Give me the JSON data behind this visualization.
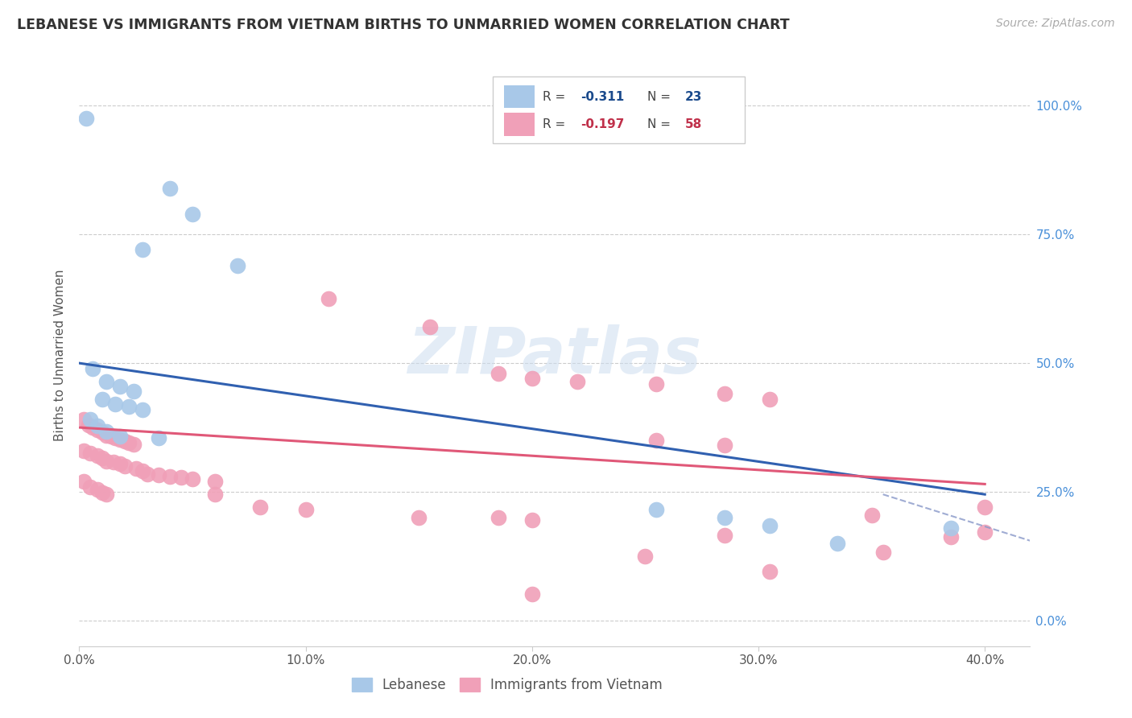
{
  "title": "LEBANESE VS IMMIGRANTS FROM VIETNAM BIRTHS TO UNMARRIED WOMEN CORRELATION CHART",
  "source": "Source: ZipAtlas.com",
  "ylabel": "Births to Unmarried Women",
  "yticks_labels": [
    "100.0%",
    "75.0%",
    "50.0%",
    "25.0%",
    "0.0%"
  ],
  "ytick_vals": [
    1.0,
    0.75,
    0.5,
    0.25,
    0.0
  ],
  "xticks_labels": [
    "0.0%",
    "10.0%",
    "20.0%",
    "30.0%",
    "40.0%"
  ],
  "xtick_vals": [
    0.0,
    0.1,
    0.2,
    0.3,
    0.4
  ],
  "xrange": [
    0.0,
    0.42
  ],
  "yrange": [
    -0.05,
    1.08
  ],
  "blue_color": "#a8c8e8",
  "pink_color": "#f0a0b8",
  "line_blue": "#3060b0",
  "line_pink": "#e05878",
  "line_dash": "#8898c8",
  "blue_line_x": [
    0.0,
    0.4
  ],
  "blue_line_y": [
    0.5,
    0.245
  ],
  "pink_line_x": [
    0.0,
    0.4
  ],
  "pink_line_y": [
    0.375,
    0.265
  ],
  "dash_line_x": [
    0.355,
    0.42
  ],
  "dash_line_y": [
    0.245,
    0.155
  ],
  "blue_dots": [
    [
      0.003,
      0.975
    ],
    [
      0.04,
      0.84
    ],
    [
      0.05,
      0.79
    ],
    [
      0.028,
      0.72
    ],
    [
      0.07,
      0.69
    ],
    [
      0.006,
      0.49
    ],
    [
      0.012,
      0.465
    ],
    [
      0.018,
      0.455
    ],
    [
      0.024,
      0.445
    ],
    [
      0.01,
      0.43
    ],
    [
      0.016,
      0.42
    ],
    [
      0.022,
      0.415
    ],
    [
      0.028,
      0.41
    ],
    [
      0.005,
      0.39
    ],
    [
      0.008,
      0.378
    ],
    [
      0.012,
      0.368
    ],
    [
      0.018,
      0.358
    ],
    [
      0.035,
      0.355
    ],
    [
      0.255,
      0.215
    ],
    [
      0.285,
      0.2
    ],
    [
      0.305,
      0.185
    ],
    [
      0.335,
      0.15
    ],
    [
      0.385,
      0.18
    ]
  ],
  "pink_dots": [
    [
      0.002,
      0.39
    ],
    [
      0.004,
      0.38
    ],
    [
      0.006,
      0.375
    ],
    [
      0.008,
      0.37
    ],
    [
      0.01,
      0.365
    ],
    [
      0.012,
      0.36
    ],
    [
      0.014,
      0.358
    ],
    [
      0.016,
      0.355
    ],
    [
      0.018,
      0.352
    ],
    [
      0.02,
      0.348
    ],
    [
      0.022,
      0.345
    ],
    [
      0.024,
      0.342
    ],
    [
      0.002,
      0.33
    ],
    [
      0.005,
      0.325
    ],
    [
      0.008,
      0.32
    ],
    [
      0.01,
      0.315
    ],
    [
      0.012,
      0.31
    ],
    [
      0.015,
      0.308
    ],
    [
      0.018,
      0.305
    ],
    [
      0.02,
      0.3
    ],
    [
      0.025,
      0.295
    ],
    [
      0.028,
      0.29
    ],
    [
      0.03,
      0.285
    ],
    [
      0.035,
      0.283
    ],
    [
      0.04,
      0.28
    ],
    [
      0.045,
      0.278
    ],
    [
      0.05,
      0.275
    ],
    [
      0.06,
      0.27
    ],
    [
      0.002,
      0.27
    ],
    [
      0.005,
      0.26
    ],
    [
      0.008,
      0.255
    ],
    [
      0.01,
      0.248
    ],
    [
      0.012,
      0.245
    ],
    [
      0.11,
      0.625
    ],
    [
      0.155,
      0.57
    ],
    [
      0.185,
      0.48
    ],
    [
      0.2,
      0.47
    ],
    [
      0.22,
      0.465
    ],
    [
      0.255,
      0.46
    ],
    [
      0.285,
      0.44
    ],
    [
      0.305,
      0.43
    ],
    [
      0.255,
      0.35
    ],
    [
      0.285,
      0.34
    ],
    [
      0.06,
      0.245
    ],
    [
      0.08,
      0.22
    ],
    [
      0.1,
      0.215
    ],
    [
      0.15,
      0.2
    ],
    [
      0.185,
      0.2
    ],
    [
      0.2,
      0.195
    ],
    [
      0.35,
      0.205
    ],
    [
      0.4,
      0.22
    ],
    [
      0.25,
      0.125
    ],
    [
      0.305,
      0.095
    ],
    [
      0.355,
      0.132
    ],
    [
      0.385,
      0.162
    ],
    [
      0.4,
      0.172
    ],
    [
      0.2,
      0.052
    ],
    [
      0.285,
      0.165
    ]
  ]
}
